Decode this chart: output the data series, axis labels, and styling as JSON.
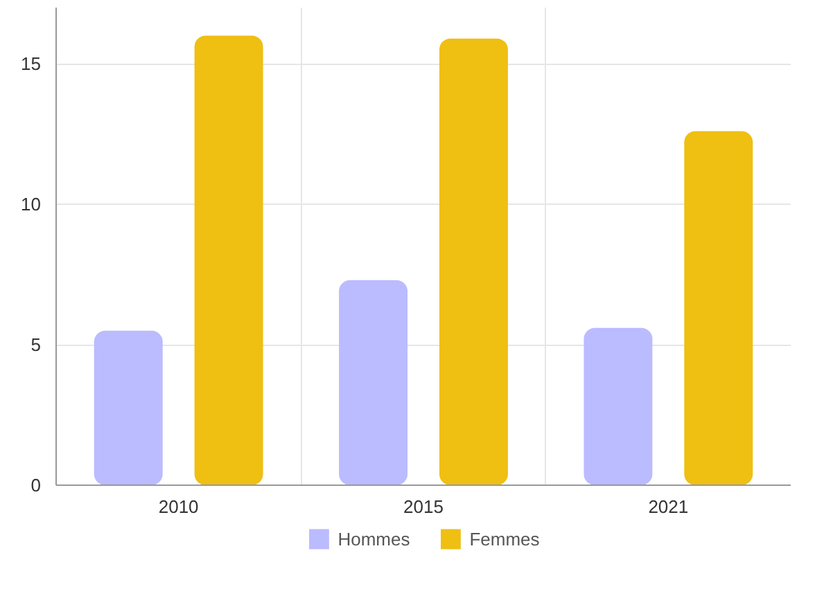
{
  "chart_data": {
    "type": "bar",
    "categories": [
      "2010",
      "2015",
      "2021"
    ],
    "series": [
      {
        "name": "Hommes",
        "color": "#bbbbff",
        "values": [
          5.5,
          7.3,
          5.6
        ]
      },
      {
        "name": "Femmes",
        "color": "#efbf12",
        "values": [
          16.0,
          15.9,
          12.6
        ]
      }
    ],
    "ylim": [
      0,
      17
    ],
    "yticks": [
      0,
      5,
      10,
      15
    ],
    "grid": true,
    "legend": "bottom"
  }
}
